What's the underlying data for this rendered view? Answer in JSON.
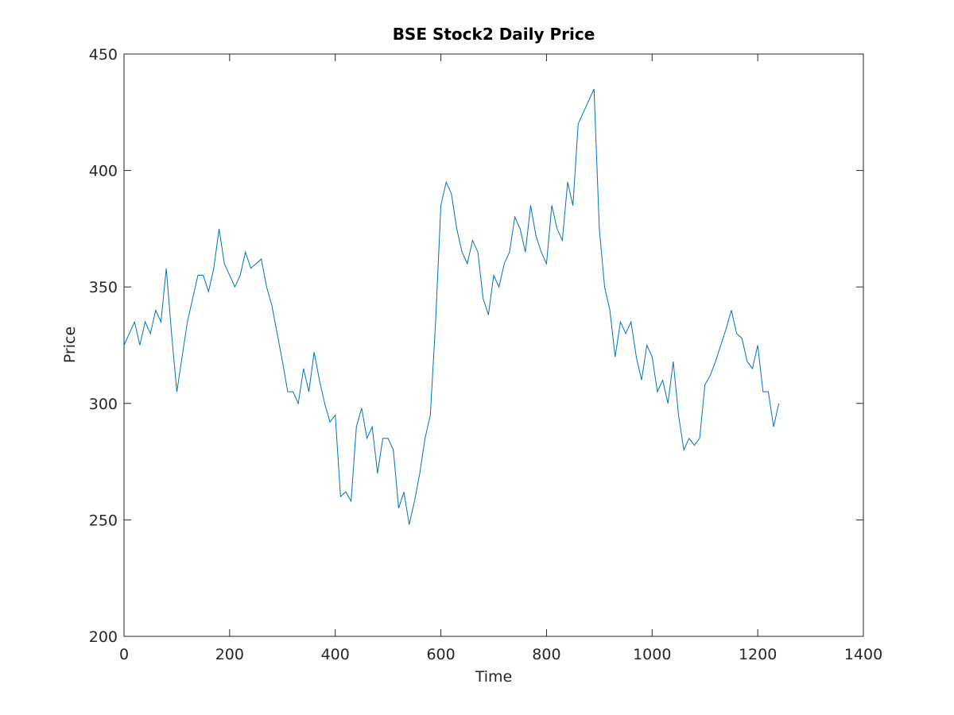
{
  "chart_data": {
    "type": "line",
    "title": "BSE Stock2 Daily Price",
    "x_label": "Time",
    "y_label": "Price",
    "x": [
      0,
      10,
      20,
      30,
      40,
      50,
      60,
      70,
      80,
      90,
      100,
      110,
      120,
      130,
      140,
      150,
      160,
      170,
      180,
      190,
      200,
      210,
      220,
      230,
      240,
      250,
      260,
      270,
      280,
      290,
      300,
      310,
      320,
      330,
      340,
      350,
      360,
      370,
      380,
      390,
      400,
      410,
      420,
      430,
      440,
      450,
      460,
      470,
      480,
      490,
      500,
      510,
      520,
      530,
      540,
      550,
      560,
      570,
      580,
      590,
      600,
      610,
      620,
      630,
      640,
      650,
      660,
      670,
      680,
      690,
      700,
      710,
      720,
      730,
      740,
      750,
      760,
      770,
      780,
      790,
      800,
      810,
      820,
      830,
      840,
      850,
      860,
      870,
      880,
      890,
      900,
      910,
      920,
      930,
      940,
      950,
      960,
      970,
      980,
      990,
      1000,
      1010,
      1020,
      1030,
      1040,
      1050,
      1060,
      1070,
      1080,
      1090,
      1100,
      1110,
      1120,
      1130,
      1140,
      1150,
      1160,
      1170,
      1180,
      1190,
      1200,
      1210,
      1220,
      1230,
      1240
    ],
    "series": [
      {
        "name": "Stock2",
        "color": "#0072bd",
        "values": [
          325,
          330,
          335,
          325,
          335,
          330,
          340,
          335,
          358,
          330,
          305,
          320,
          335,
          345,
          355,
          355,
          348,
          358,
          375,
          360,
          355,
          350,
          355,
          365,
          358,
          360,
          362,
          350,
          342,
          330,
          318,
          305,
          305,
          300,
          315,
          305,
          322,
          310,
          300,
          292,
          295,
          260,
          262,
          258,
          290,
          298,
          285,
          290,
          270,
          285,
          285,
          280,
          255,
          262,
          248,
          258,
          270,
          285,
          295,
          335,
          385,
          395,
          390,
          375,
          365,
          360,
          370,
          365,
          345,
          338,
          355,
          350,
          360,
          365,
          380,
          375,
          365,
          385,
          372,
          365,
          360,
          385,
          375,
          370,
          395,
          385,
          420,
          425,
          430,
          435,
          375,
          350,
          340,
          320,
          335,
          330,
          335,
          320,
          310,
          325,
          320,
          305,
          310,
          300,
          318,
          295,
          280,
          285,
          282,
          285,
          308,
          312,
          318,
          325,
          332,
          340,
          330,
          328,
          318,
          315,
          325,
          305,
          305,
          290,
          300
        ]
      }
    ],
    "xlim": [
      0,
      1400
    ],
    "ylim": [
      200,
      450
    ],
    "xticks": [
      0,
      200,
      400,
      600,
      800,
      1000,
      1200,
      1400
    ],
    "yticks": [
      200,
      250,
      300,
      350,
      400,
      450
    ]
  }
}
